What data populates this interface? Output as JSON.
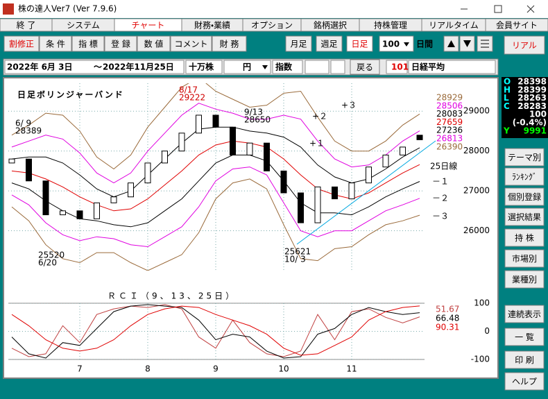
{
  "window": {
    "title": "株の達人Ver7 (Ver 7.9.6)"
  },
  "menu": [
    {
      "label": "終 了"
    },
    {
      "label": "システム"
    },
    {
      "label": "チャート",
      "active": true
    },
    {
      "label": "財務・業績"
    },
    {
      "label": "オプション"
    },
    {
      "label": "銘柄選択"
    },
    {
      "label": "持株管理"
    },
    {
      "label": "リアルタイム"
    },
    {
      "label": "会員サイト"
    }
  ],
  "toolbar": {
    "tools": [
      {
        "label": "割修正",
        "active": true
      },
      {
        "label": "条 件"
      },
      {
        "label": "指 標"
      },
      {
        "label": "登 録"
      },
      {
        "label": "数 値"
      },
      {
        "label": "コメント"
      },
      {
        "label": "財 務"
      }
    ],
    "periods": [
      {
        "label": "月足"
      },
      {
        "label": "週足"
      },
      {
        "label": "日足",
        "active": true
      }
    ],
    "days": "100",
    "days_unit": "日間"
  },
  "date_bar": {
    "start": "2022年 6月 3日",
    "sep": "～",
    "end": "2022年11月25日",
    "unit": "十万株",
    "currency": "円",
    "index_label": "指数",
    "back": "戻る",
    "code": "101",
    "name": "日経平均"
  },
  "quote": [
    {
      "label": "O",
      "value": 28398
    },
    {
      "label": "H",
      "value": 28399
    },
    {
      "label": "L",
      "value": 28263
    },
    {
      "label": "C",
      "value": 28283
    },
    {
      "value": 100
    },
    {
      "value": "(-0.4%)"
    },
    {
      "label": "Y",
      "value": 9991
    }
  ],
  "side": {
    "top": "リアル",
    "buttons": [
      "テーマ別",
      "ﾗﾝｷﾝｸﾞ",
      "個別登録",
      "選択結果",
      "持 株",
      "市場別",
      "業種別",
      "連続表示",
      "一 覧",
      "印 刷",
      "ヘルプ"
    ]
  },
  "chart_data": [
    {
      "type": "candlestick",
      "title": "日足ボリンジャーバンド",
      "categories": [
        null,
        null,
        null,
        null,
        null,
        null,
        null,
        null,
        null,
        null,
        null,
        null,
        null,
        null,
        null,
        null,
        null,
        null,
        null,
        null,
        null,
        null,
        null,
        null,
        null
      ],
      "open": [
        27700,
        27800,
        27250,
        26400,
        26500,
        26300,
        26700,
        26850,
        27200,
        27700,
        28000,
        28450,
        28900,
        28600,
        27900,
        28200,
        27500,
        26950,
        26200,
        27100,
        26800,
        27200,
        27600,
        27900,
        28398
      ],
      "close": [
        27800,
        27250,
        26400,
        26500,
        26300,
        26700,
        26850,
        27200,
        27700,
        28000,
        28450,
        28900,
        28600,
        27900,
        28200,
        27500,
        26950,
        26200,
        27100,
        26800,
        27200,
        27600,
        27900,
        28100,
        28283
      ],
      "ylim": [
        25000,
        29700
      ],
      "yticks": [
        29000,
        28000,
        27000,
        26000
      ],
      "grid": true,
      "series": [
        {
          "name": "+３",
          "color": "#9a6a3a",
          "values": [
            28400,
            28650,
            28950,
            28900,
            28500,
            27850,
            27550,
            27900,
            28600,
            29100,
            29600,
            29850,
            29500,
            29300,
            29100,
            29150,
            29450,
            29500,
            28850,
            28250,
            28000,
            28000,
            28250,
            28650,
            28929
          ]
        },
        {
          "name": "+２",
          "color": "#e000e0",
          "values": [
            28100,
            28250,
            28400,
            28300,
            27950,
            27450,
            27200,
            27450,
            28000,
            28450,
            28900,
            29200,
            29050,
            28950,
            28800,
            28800,
            28900,
            28800,
            28250,
            27800,
            27600,
            27650,
            27900,
            28250,
            28506
          ]
        },
        {
          "name": "+１",
          "color": "#000000",
          "values": [
            27800,
            27850,
            27850,
            27700,
            27400,
            27050,
            26850,
            27000,
            27400,
            27800,
            28200,
            28550,
            28600,
            28600,
            28500,
            28450,
            28350,
            28100,
            27650,
            27350,
            27200,
            27300,
            27550,
            27850,
            28083
          ]
        },
        {
          "name": "25日線",
          "color": "#e00000",
          "values": [
            27500,
            27450,
            27300,
            27100,
            26850,
            26650,
            26500,
            26550,
            26800,
            27150,
            27500,
            27900,
            28150,
            28250,
            28200,
            28100,
            27800,
            27400,
            27050,
            26900,
            26800,
            26950,
            27200,
            27450,
            27659
          ]
        },
        {
          "name": "－１",
          "color": "#000000",
          "values": [
            27200,
            27050,
            26750,
            26500,
            26300,
            26250,
            26150,
            26100,
            26200,
            26500,
            26800,
            27250,
            27700,
            27900,
            27900,
            27750,
            27250,
            26700,
            26450,
            26450,
            26400,
            26600,
            26850,
            27050,
            27236
          ]
        },
        {
          "name": "－２",
          "color": "#e000e0",
          "values": [
            26900,
            26650,
            26200,
            25900,
            25750,
            25850,
            25800,
            25650,
            25600,
            25850,
            26100,
            26600,
            27250,
            27550,
            27600,
            27400,
            26700,
            26000,
            25850,
            26000,
            26000,
            26250,
            26500,
            26650,
            26813
          ]
        },
        {
          "name": "－３",
          "color": "#9a6a3a",
          "values": [
            26600,
            26250,
            25650,
            25300,
            25200,
            25450,
            25450,
            25200,
            25000,
            25200,
            25400,
            25950,
            26800,
            27200,
            27300,
            27050,
            26150,
            25300,
            25250,
            25550,
            25600,
            25900,
            26150,
            26250,
            26390
          ]
        }
      ],
      "annotations": [
        {
          "lines": [
            "6/ 9",
            "28389"
          ],
          "color": "#000000"
        },
        {
          "lines": [
            "8/17",
            "29222"
          ],
          "color": "#d00000"
        },
        {
          "lines": [
            "9/13",
            "28650"
          ],
          "color": "#000000"
        },
        {
          "lines": [
            "25621",
            "10/ 3"
          ],
          "color": "#000000"
        },
        {
          "lines": [
            "25520",
            "6/20"
          ],
          "color": "#000000"
        }
      ]
    },
    {
      "type": "line",
      "title": "ＲＣＩ（9、13、25日）",
      "categories": [
        null,
        null,
        null,
        null,
        "7",
        null,
        null,
        null,
        "8",
        null,
        null,
        null,
        "9",
        null,
        null,
        null,
        "10",
        null,
        null,
        null,
        "11",
        null,
        null,
        null,
        null
      ],
      "ylim": [
        -100,
        100
      ],
      "yticks": [
        100,
        0,
        -100
      ],
      "series": [
        {
          "color": "#c04040",
          "values": [
            -60,
            -90,
            -80,
            20,
            -40,
            60,
            80,
            90,
            85,
            95,
            80,
            -20,
            -60,
            40,
            -40,
            -80,
            -90,
            -70,
            60,
            -30,
            70,
            80,
            50,
            30,
            51.67
          ]
        },
        {
          "color": "#000000",
          "values": [
            -20,
            -80,
            -95,
            -40,
            -50,
            10,
            70,
            90,
            95,
            90,
            85,
            40,
            -30,
            -10,
            -20,
            -70,
            -95,
            -90,
            -10,
            10,
            60,
            85,
            70,
            60,
            66.48
          ]
        },
        {
          "color": "#e00000",
          "values": [
            60,
            20,
            -30,
            -60,
            -70,
            -60,
            -30,
            20,
            60,
            80,
            90,
            85,
            60,
            40,
            20,
            -10,
            -60,
            -85,
            -80,
            -50,
            -20,
            40,
            70,
            85,
            90.31
          ]
        }
      ]
    }
  ]
}
